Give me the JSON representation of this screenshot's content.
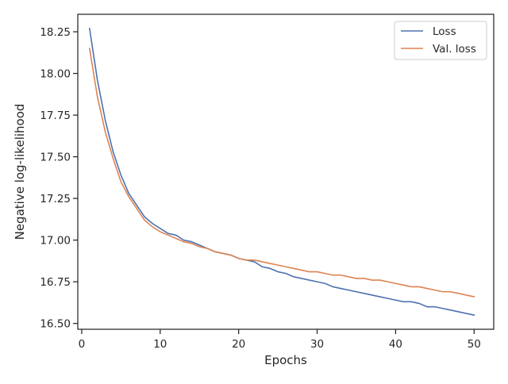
{
  "chart_data": {
    "type": "line",
    "title": "",
    "xlabel": "Epochs",
    "ylabel": "Negative log-likelihood",
    "xlim": [
      -0.5,
      52.5
    ],
    "ylim": [
      16.465,
      18.355
    ],
    "xticks": [
      0,
      10,
      20,
      30,
      40,
      50
    ],
    "yticks": [
      16.5,
      16.75,
      17.0,
      17.25,
      17.5,
      17.75,
      18.0,
      18.25
    ],
    "ytick_labels": [
      "16.50",
      "16.75",
      "17.00",
      "17.25",
      "17.50",
      "17.75",
      "18.00",
      "18.25"
    ],
    "grid": false,
    "legend_position": "top-right",
    "x": [
      1,
      2,
      3,
      4,
      5,
      6,
      7,
      8,
      9,
      10,
      11,
      12,
      13,
      14,
      15,
      16,
      17,
      18,
      19,
      20,
      21,
      22,
      23,
      24,
      25,
      26,
      27,
      28,
      29,
      30,
      31,
      32,
      33,
      34,
      35,
      36,
      37,
      38,
      39,
      40,
      41,
      42,
      43,
      44,
      45,
      46,
      47,
      48,
      49,
      50
    ],
    "series": [
      {
        "name": "Loss",
        "color": "#4c72b0",
        "values": [
          18.27,
          17.96,
          17.72,
          17.53,
          17.39,
          17.28,
          17.21,
          17.14,
          17.1,
          17.07,
          17.04,
          17.03,
          17.0,
          16.99,
          16.97,
          16.95,
          16.93,
          16.92,
          16.91,
          16.89,
          16.88,
          16.87,
          16.84,
          16.83,
          16.81,
          16.8,
          16.78,
          16.77,
          16.76,
          16.75,
          16.74,
          16.72,
          16.71,
          16.7,
          16.69,
          16.68,
          16.67,
          16.66,
          16.65,
          16.64,
          16.63,
          16.63,
          16.62,
          16.6,
          16.6,
          16.59,
          16.58,
          16.57,
          16.56,
          16.55
        ]
      },
      {
        "name": "Val. loss",
        "color": "#dd8452",
        "values": [
          18.15,
          17.86,
          17.65,
          17.49,
          17.35,
          17.26,
          17.19,
          17.12,
          17.08,
          17.05,
          17.03,
          17.01,
          16.99,
          16.98,
          16.96,
          16.95,
          16.93,
          16.92,
          16.91,
          16.89,
          16.88,
          16.88,
          16.87,
          16.86,
          16.85,
          16.84,
          16.83,
          16.82,
          16.81,
          16.81,
          16.8,
          16.79,
          16.79,
          16.78,
          16.77,
          16.77,
          16.76,
          16.76,
          16.75,
          16.74,
          16.73,
          16.72,
          16.72,
          16.71,
          16.7,
          16.69,
          16.69,
          16.68,
          16.67,
          16.66
        ]
      }
    ]
  }
}
